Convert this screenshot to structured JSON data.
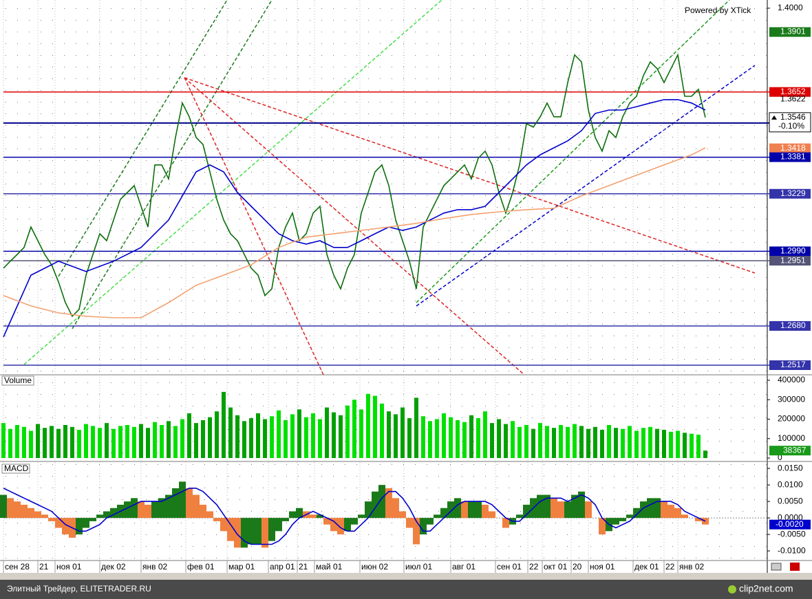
{
  "chart_data": [
    {
      "type": "line",
      "xlim": [
        0,
        111
      ],
      "xticks": [
        {
          "value": 0,
          "label": "сен 28"
        },
        {
          "value": 5,
          "label": "21"
        },
        {
          "value": 7.5,
          "label": "ноя 01"
        },
        {
          "value": 14,
          "label": "дек 02"
        },
        {
          "value": 20,
          "label": "янв 02"
        },
        {
          "value": 26.5,
          "label": "фев 01"
        },
        {
          "value": 32.5,
          "label": "мар 01"
        },
        {
          "value": 38.5,
          "label": "апр 01"
        },
        {
          "value": 42.7,
          "label": "21"
        },
        {
          "value": 45.2,
          "label": "май 01"
        },
        {
          "value": 51.8,
          "label": "июн 02"
        },
        {
          "value": 58.2,
          "label": "июл 01"
        },
        {
          "value": 65,
          "label": "авг 01"
        },
        {
          "value": 71.5,
          "label": "сен 01"
        },
        {
          "value": 76.2,
          "label": "22"
        },
        {
          "value": 78.3,
          "label": "окт 01"
        },
        {
          "value": 82.5,
          "label": "20"
        },
        {
          "value": 85,
          "label": "ноя 01"
        },
        {
          "value": 91.5,
          "label": "дек 01"
        },
        {
          "value": 96,
          "label": "22"
        },
        {
          "value": 98,
          "label": "янв 02"
        }
      ],
      "ylim": [
        1.2477,
        1.4034
      ],
      "yticks": [
        {
          "value": 1.4,
          "label": "1.4000"
        }
      ],
      "series": [
        {
          "color": "#0a6e0a",
          "values": [
            1.292,
            1.2949,
            1.2977,
            1.3006,
            1.3091,
            1.3034,
            1.2977,
            1.2934,
            1.2863,
            1.2777,
            1.272,
            1.2749,
            1.2891,
            1.2977,
            1.3063,
            1.3034,
            1.312,
            1.3206,
            1.3234,
            1.3263,
            1.3177,
            1.3091,
            1.3349,
            1.3349,
            1.3291,
            1.3463,
            1.3606,
            1.3549,
            1.3463,
            1.3434,
            1.332,
            1.3206,
            1.312,
            1.3063,
            1.3034,
            1.2977,
            1.292,
            1.2891,
            1.2806,
            1.2834,
            1.3006,
            1.3091,
            1.3149,
            1.3034,
            1.3063,
            1.3149,
            1.3177,
            1.2977,
            1.2891,
            1.2834,
            1.292,
            1.2977,
            1.3149,
            1.3234,
            1.332,
            1.3349,
            1.3263,
            1.312,
            1.3034,
            1.2949,
            1.2834,
            1.3091,
            1.3149,
            1.3206,
            1.3263,
            1.3291,
            1.332,
            1.3349,
            1.3291,
            1.3377,
            1.3406,
            1.3349,
            1.3234,
            1.3149,
            1.3234,
            1.3349,
            1.352,
            1.3506,
            1.3549,
            1.3606,
            1.3549,
            1.3549,
            1.3691,
            1.3806,
            1.3777,
            1.3577,
            1.3463,
            1.3406,
            1.3491,
            1.3463,
            1.3549,
            1.3606,
            1.3634,
            1.372,
            1.3777,
            1.3749,
            1.3691,
            1.3749,
            1.3806,
            1.3634,
            1.3634,
            1.3663,
            1.3546
          ]
        },
        {
          "color": "#0000cc",
          "x": [
            0,
            4,
            8,
            12,
            16,
            20,
            24,
            28,
            30,
            32,
            34,
            36,
            38,
            40,
            42,
            44,
            46,
            48,
            50,
            52,
            54,
            56,
            58,
            60,
            62,
            64,
            66,
            68,
            70,
            72,
            74,
            76,
            78,
            80,
            82,
            84,
            86,
            88,
            90,
            92,
            94,
            96,
            98,
            100,
            102
          ],
          "values": [
            1.2634,
            1.2891,
            1.2949,
            1.2906,
            1.2949,
            1.3006,
            1.312,
            1.332,
            1.3349,
            1.332,
            1.3234,
            1.3177,
            1.312,
            1.3063,
            1.3034,
            1.302,
            1.3034,
            1.3006,
            1.3006,
            1.3034,
            1.3063,
            1.3091,
            1.3077,
            1.3091,
            1.312,
            1.3149,
            1.3163,
            1.3163,
            1.3177,
            1.3234,
            1.3291,
            1.3349,
            1.3391,
            1.342,
            1.3449,
            1.3491,
            1.3563,
            1.3577,
            1.3577,
            1.3591,
            1.3606,
            1.362,
            1.362,
            1.3606,
            1.3577
          ]
        },
        {
          "color": "#f4a070",
          "x": [
            0,
            4,
            8,
            12,
            16,
            20,
            24,
            28,
            32,
            36,
            40,
            44,
            48,
            52,
            56,
            60,
            64,
            68,
            72,
            76,
            80,
            84,
            88,
            92,
            96,
            100,
            102
          ],
          "values": [
            1.2806,
            1.2763,
            1.2734,
            1.272,
            1.2714,
            1.2714,
            1.2777,
            1.2849,
            1.2891,
            1.2934,
            1.3006,
            1.3049,
            1.3063,
            1.3077,
            1.3091,
            1.3106,
            1.3126,
            1.3143,
            1.3154,
            1.3163,
            1.3169,
            1.322,
            1.3263,
            1.3306,
            1.3349,
            1.3391,
            1.342
          ]
        }
      ],
      "levels": [
        {
          "value": 1.3901,
          "label": "1.3901",
          "color": "#1a7a1a",
          "line": false,
          "box": true
        },
        {
          "value": 1.3652,
          "label": "1.3652",
          "color": "#dd0000",
          "line": true,
          "box": true
        },
        {
          "value": 1.3622,
          "label": "1.3622",
          "color": "#666666",
          "line": false,
          "box": false
        },
        {
          "value": 1.3418,
          "label": "1.3418",
          "color": "#f08050",
          "line": false,
          "box": true
        },
        {
          "value": 1.3381,
          "label": "1.3381",
          "color": "#0000aa",
          "line": true,
          "box": true
        },
        {
          "value": 1.3229,
          "label": "1.3229",
          "color": "#3333aa",
          "line": true,
          "box": true
        },
        {
          "value": 1.299,
          "label": "1.2990",
          "color": "#0000aa",
          "line": true,
          "box": true
        },
        {
          "value": 1.2951,
          "label": "1.2951",
          "color": "#555577",
          "line": true,
          "box": true
        },
        {
          "value": 1.268,
          "label": "1.2680",
          "color": "#3333aa",
          "line": true,
          "box": true
        },
        {
          "value": 1.2517,
          "label": "1.2517",
          "color": "#3333aa",
          "line": true,
          "box": true
        }
      ],
      "last": {
        "value": 1.3546,
        "label": "1.3546",
        "change": -0.1,
        "change_label": "-0.10%",
        "color": "#00008b"
      },
      "watermark": "Powered by XTick"
    },
    {
      "type": "bar",
      "title": "Volume",
      "ylim": [
        -14000,
        428000
      ],
      "yticks": [
        0,
        100000,
        200000,
        300000,
        400000
      ],
      "color": "#00e000",
      "color_down": "#00a000",
      "values": [
        180000,
        150000,
        170000,
        160000,
        140000,
        175000,
        155000,
        165000,
        150000,
        170000,
        160000,
        145000,
        175000,
        165000,
        155000,
        180000,
        150000,
        165000,
        170000,
        160000,
        175000,
        155000,
        185000,
        170000,
        190000,
        165000,
        200000,
        230000,
        180000,
        195000,
        210000,
        240000,
        340000,
        260000,
        220000,
        190000,
        205000,
        230000,
        200000,
        215000,
        245000,
        195000,
        225000,
        250000,
        210000,
        230000,
        200000,
        260000,
        235000,
        220000,
        270000,
        300000,
        250000,
        330000,
        320000,
        280000,
        240000,
        225000,
        260000,
        205000,
        310000,
        215000,
        190000,
        200000,
        230000,
        210000,
        195000,
        185000,
        220000,
        205000,
        240000,
        180000,
        200000,
        175000,
        190000,
        160000,
        170000,
        150000,
        180000,
        165000,
        155000,
        170000,
        160000,
        175000,
        165000,
        150000,
        160000,
        145000,
        170000,
        155000,
        150000,
        165000,
        140000,
        155000,
        160000,
        150000,
        145000,
        135000,
        140000,
        130000,
        125000,
        120000,
        38367
      ]
    },
    {
      "type": "bar",
      "title": "MACD",
      "ylim": [
        -0.0129,
        0.0167
      ],
      "yticks": [
        {
          "value": 0.015,
          "label": "0.0150"
        },
        {
          "value": 0.01,
          "label": "0.0100"
        },
        {
          "value": 0.005,
          "label": "0.0050"
        },
        {
          "value": 0,
          "label": "0.0000"
        },
        {
          "value": -0.005,
          "label": "-0.0050"
        },
        {
          "value": -0.01,
          "label": "-0.0100"
        }
      ],
      "series": [
        {
          "type": "bar",
          "color": "#1a7a1a",
          "color_down": "#f08040",
          "values": [
            0.007,
            0.006,
            0.005,
            0.004,
            0.003,
            0.002,
            0.001,
            -0.001,
            -0.003,
            -0.005,
            -0.006,
            -0.005,
            -0.003,
            -0.001,
            0.001,
            0.002,
            0.003,
            0.004,
            0.005,
            0.006,
            0.005,
            0.004,
            0.005,
            0.006,
            0.007,
            0.009,
            0.011,
            0.009,
            0.007,
            0.004,
            0.002,
            -0.001,
            -0.004,
            -0.007,
            -0.009,
            -0.009,
            -0.008,
            -0.008,
            -0.009,
            -0.007,
            -0.004,
            -0.001,
            0.002,
            0.003,
            0.002,
            0.001,
            0.001,
            -0.002,
            -0.004,
            -0.005,
            -0.004,
            -0.002,
            0.001,
            0.005,
            0.008,
            0.01,
            0.009,
            0.006,
            0.002,
            -0.003,
            -0.008,
            -0.005,
            -0.002,
            0.001,
            0.003,
            0.005,
            0.006,
            0.005,
            0.005,
            0.005,
            0.004,
            0.002,
            0,
            -0.003,
            -0.002,
            0.001,
            0.004,
            0.006,
            0.007,
            0.007,
            0.006,
            0.005,
            0.005,
            0.007,
            0.008,
            0.005,
            0,
            -0.005,
            -0.004,
            -0.002,
            -0.001,
            0.001,
            0.003,
            0.005,
            0.006,
            0.006,
            0.005,
            0.004,
            0.003,
            0.001,
            0,
            -0.001,
            -0.002
          ]
        },
        {
          "type": "line",
          "color": "#0000cc",
          "values": [
            0.009,
            0.008,
            0.007,
            0.006,
            0.005,
            0.004,
            0.003,
            0.002,
            0,
            -0.002,
            -0.003,
            -0.004,
            -0.004,
            -0.003,
            -0.002,
            0,
            0.001,
            0.002,
            0.003,
            0.004,
            0.005,
            0.005,
            0.005,
            0.005,
            0.006,
            0.007,
            0.008,
            0.009,
            0.009,
            0.008,
            0.006,
            0.004,
            0.001,
            -0.002,
            -0.005,
            -0.007,
            -0.008,
            -0.008,
            -0.008,
            -0.008,
            -0.007,
            -0.005,
            -0.002,
            0,
            0.001,
            0.002,
            0.001,
            0,
            -0.001,
            -0.003,
            -0.004,
            -0.004,
            -0.002,
            0,
            0.003,
            0.006,
            0.008,
            0.008,
            0.006,
            0.003,
            -0.001,
            -0.004,
            -0.004,
            -0.002,
            0,
            0.002,
            0.004,
            0.005,
            0.005,
            0.005,
            0.005,
            0.004,
            0.002,
            0,
            -0.001,
            -0.001,
            0.001,
            0.003,
            0.005,
            0.006,
            0.006,
            0.006,
            0.005,
            0.006,
            0.007,
            0.006,
            0.004,
            0,
            -0.002,
            -0.003,
            -0.002,
            -0.001,
            0.001,
            0.003,
            0.004,
            0.005,
            0.005,
            0.005,
            0.004,
            0.002,
            0.001,
            0,
            -0.001
          ]
        }
      ],
      "last": {
        "value": -0.002,
        "label": "-0.0020",
        "color": "#0000cc"
      }
    }
  ],
  "footer": {
    "left": "Элитный Трейдер, ELITETRADER.RU",
    "right": "clip2net.com"
  }
}
